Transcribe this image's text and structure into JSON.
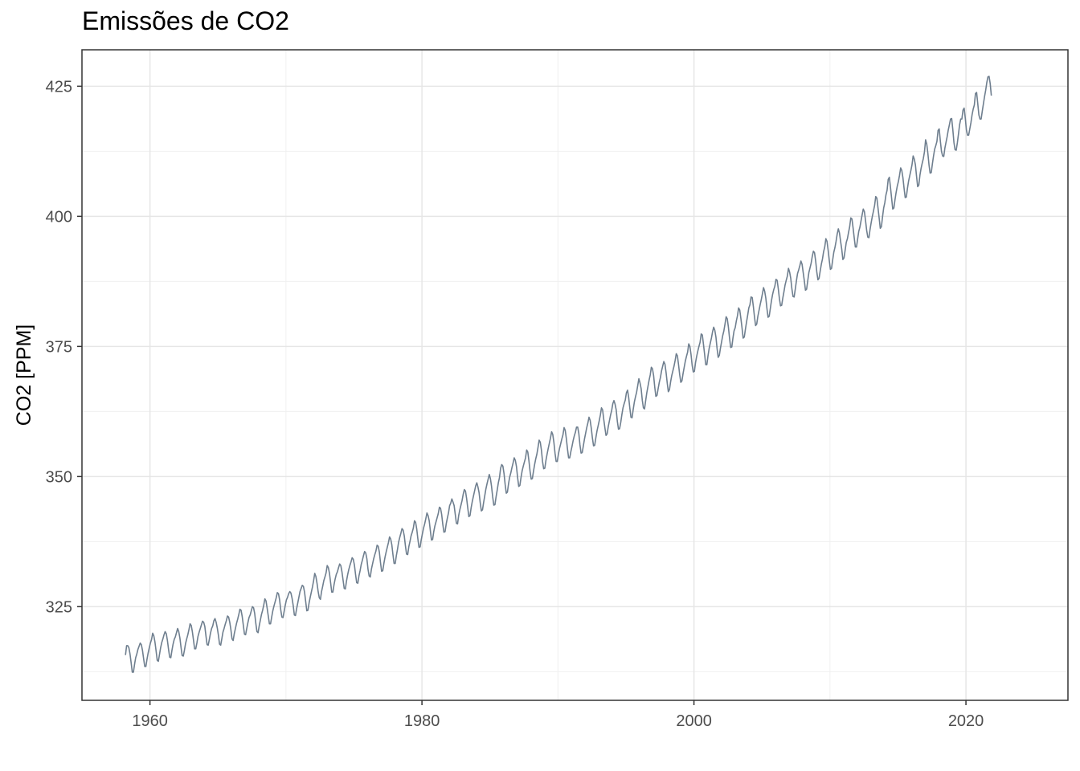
{
  "chart_data": {
    "type": "line",
    "title": "Emissões de CO2",
    "xlabel": "",
    "ylabel": "CO2 [PPM]",
    "xlim": [
      1955,
      2027.5
    ],
    "ylim": [
      307,
      432
    ],
    "x_ticks": [
      1960,
      1980,
      2000,
      2020
    ],
    "y_ticks": [
      325,
      350,
      375,
      400,
      425
    ],
    "grid": true,
    "legend": "none",
    "line_color": "#6f7f8f",
    "sampling": "monthly",
    "series": [
      {
        "x_start": 1958.2,
        "x_step": 0.0833333,
        "values": [
          315.7,
          317.5,
          317.5,
          317.1,
          315.9,
          314.2,
          312.4,
          312.4,
          313.9,
          315.2,
          315.9,
          316.8,
          317.4,
          318.0,
          317.7,
          316.6,
          315.0,
          313.5,
          313.5,
          314.9,
          316.1,
          317.1,
          318.0,
          318.7,
          319.9,
          319.4,
          318.2,
          316.5,
          314.7,
          314.5,
          315.8,
          317.1,
          318.1,
          318.8,
          319.6,
          320.2,
          319.8,
          318.5,
          316.8,
          315.3,
          315.2,
          316.6,
          317.8,
          318.7,
          319.2,
          320.0,
          320.8,
          320.2,
          319.0,
          317.2,
          315.6,
          315.5,
          316.6,
          317.9,
          318.8,
          319.6,
          320.6,
          321.7,
          321.4,
          320.2,
          318.6,
          316.9,
          316.9,
          318.0,
          319.3,
          320.1,
          320.8,
          321.5,
          322.2,
          322.0,
          321.2,
          319.4,
          317.7,
          317.6,
          318.7,
          319.9,
          320.8,
          321.3,
          322.3,
          322.7,
          322.0,
          320.9,
          319.5,
          317.8,
          317.6,
          318.8,
          320.1,
          320.8,
          321.6,
          322.3,
          323.2,
          323.0,
          322.0,
          320.6,
          318.8,
          318.5,
          319.8,
          320.8,
          321.8,
          322.6,
          323.5,
          324.5,
          324.3,
          323.1,
          321.4,
          319.7,
          319.6,
          320.8,
          321.9,
          322.9,
          323.4,
          324.2,
          325.0,
          324.8,
          323.7,
          321.8,
          320.2,
          320.0,
          321.3,
          322.4,
          323.5,
          324.3,
          325.3,
          326.5,
          326.1,
          324.7,
          323.2,
          321.7,
          321.7,
          323.0,
          324.2,
          325.1,
          325.9,
          326.7,
          327.7,
          327.5,
          326.3,
          324.4,
          323.0,
          322.9,
          324.1,
          325.3,
          326.3,
          326.8,
          327.5,
          327.9,
          327.6,
          326.6,
          325.2,
          323.4,
          323.3,
          324.6,
          325.7,
          326.8,
          327.9,
          328.5,
          329.1,
          328.9,
          327.8,
          326.0,
          324.2,
          324.3,
          325.7,
          326.8,
          327.8,
          328.8,
          330.0,
          331.4,
          330.8,
          329.5,
          327.9,
          326.7,
          326.4,
          327.9,
          328.9,
          330.0,
          330.7,
          331.5,
          332.9,
          332.5,
          331.4,
          329.6,
          327.8,
          327.8,
          329.2,
          330.3,
          331.2,
          331.7,
          332.5,
          333.2,
          332.9,
          331.7,
          330.1,
          328.5,
          328.4,
          329.9,
          331.1,
          332.1,
          332.9,
          333.6,
          334.4,
          334.1,
          333.0,
          331.2,
          329.6,
          329.5,
          330.9,
          331.9,
          333.1,
          333.9,
          334.8,
          335.6,
          335.3,
          334.2,
          332.2,
          330.9,
          330.7,
          332.2,
          333.2,
          334.2,
          335.0,
          335.7,
          336.8,
          336.6,
          335.5,
          333.5,
          331.8,
          331.9,
          333.3,
          334.5,
          335.5,
          336.4,
          337.3,
          338.4,
          338.0,
          336.9,
          335.0,
          333.3,
          333.3,
          334.8,
          336.0,
          337.4,
          338.3,
          339.1,
          340.0,
          339.7,
          338.6,
          336.7,
          335.1,
          335.0,
          336.5,
          337.5,
          338.6,
          339.3,
          340.1,
          341.5,
          341.2,
          339.9,
          338.0,
          336.4,
          336.5,
          337.9,
          339.0,
          340.1,
          340.9,
          341.9,
          343.0,
          342.5,
          341.5,
          339.6,
          337.8,
          337.9,
          339.4,
          340.5,
          341.3,
          342.1,
          342.9,
          344.1,
          343.9,
          342.7,
          340.8,
          339.3,
          339.4,
          340.9,
          342.0,
          343.0,
          344.4,
          344.9,
          345.7,
          345.1,
          344.4,
          342.7,
          341.0,
          340.9,
          342.5,
          343.6,
          344.5,
          345.4,
          346.6,
          347.5,
          347.2,
          345.8,
          344.0,
          342.3,
          342.5,
          344.0,
          345.2,
          346.2,
          347.2,
          348.2,
          348.8,
          348.0,
          346.9,
          345.0,
          343.4,
          343.6,
          345.0,
          346.3,
          347.6,
          348.6,
          349.5,
          350.4,
          349.6,
          348.1,
          346.1,
          344.5,
          344.6,
          346.1,
          347.4,
          348.8,
          349.8,
          351.6,
          352.3,
          352.0,
          350.6,
          348.5,
          346.8,
          347.0,
          348.6,
          349.9,
          350.7,
          351.7,
          352.6,
          353.6,
          353.1,
          351.9,
          349.8,
          348.1,
          348.3,
          349.8,
          351.1,
          352.0,
          352.8,
          353.6,
          355.1,
          354.7,
          353.0,
          351.0,
          349.5,
          349.6,
          351.0,
          352.3,
          353.4,
          354.3,
          355.6,
          357.0,
          356.6,
          355.1,
          352.9,
          351.5,
          351.6,
          353.1,
          354.3,
          355.4,
          356.4,
          357.4,
          358.6,
          358.1,
          356.6,
          354.5,
          352.9,
          352.9,
          354.3,
          355.4,
          356.3,
          357.2,
          358.0,
          359.4,
          358.9,
          357.3,
          355.3,
          353.6,
          353.6,
          354.8,
          355.8,
          356.9,
          357.8,
          358.5,
          359.5,
          359.5,
          358.3,
          356.1,
          354.5,
          354.6,
          355.9,
          357.2,
          358.3,
          359.4,
          360.3,
          361.4,
          360.8,
          359.3,
          357.4,
          355.9,
          356.0,
          357.4,
          358.7,
          359.7,
          360.7,
          361.8,
          363.2,
          362.8,
          361.0,
          359.4,
          357.9,
          358.2,
          359.6,
          360.7,
          361.8,
          362.7,
          364.0,
          364.6,
          363.9,
          362.8,
          360.6,
          359.1,
          359.2,
          360.4,
          361.9,
          363.2,
          364.0,
          364.7,
          366.1,
          366.6,
          365.2,
          363.2,
          361.4,
          361.3,
          362.9,
          364.3,
          365.3,
          366.2,
          367.5,
          368.8,
          368.0,
          366.9,
          364.7,
          363.2,
          363.0,
          364.6,
          366.1,
          367.3,
          368.5,
          369.5,
          371.0,
          370.7,
          369.4,
          367.2,
          365.4,
          365.6,
          366.9,
          368.1,
          369.0,
          370.3,
          371.2,
          372.1,
          371.6,
          370.0,
          368.0,
          366.3,
          366.7,
          368.2,
          369.4,
          370.3,
          371.2,
          372.3,
          373.6,
          373.2,
          371.5,
          369.6,
          368.1,
          368.4,
          369.8,
          371.0,
          372.2,
          373.1,
          373.9,
          375.5,
          375.0,
          373.5,
          371.4,
          370.1,
          370.2,
          371.9,
          373.1,
          374.1,
          375.0,
          375.8,
          377.4,
          377.2,
          375.4,
          373.5,
          371.5,
          371.5,
          373.2,
          374.6,
          375.6,
          376.6,
          377.8,
          378.7,
          378.1,
          376.8,
          374.6,
          372.9,
          373.3,
          374.7,
          375.9,
          377.1,
          378.0,
          379.3,
          380.7,
          380.3,
          378.7,
          376.6,
          374.8,
          374.9,
          376.6,
          378.0,
          378.6,
          379.9,
          380.9,
          382.4,
          382.0,
          380.4,
          378.6,
          376.6,
          376.8,
          378.3,
          379.7,
          381.0,
          382.4,
          383.0,
          384.5,
          384.4,
          382.7,
          380.7,
          379.0,
          379.3,
          380.8,
          381.9,
          383.0,
          384.0,
          385.1,
          386.3,
          385.6,
          384.3,
          382.3,
          380.6,
          380.8,
          382.3,
          383.8,
          385.0,
          385.9,
          386.6,
          387.9,
          387.7,
          386.1,
          384.2,
          382.8,
          382.9,
          384.3,
          385.5,
          386.8,
          387.7,
          388.5,
          390.0,
          389.3,
          388.1,
          386.1,
          384.6,
          384.5,
          386.0,
          387.6,
          389.0,
          389.7,
          390.5,
          391.4,
          390.8,
          389.2,
          387.6,
          385.8,
          386.0,
          387.6,
          389.2,
          390.1,
          391.0,
          392.3,
          393.3,
          393.0,
          391.4,
          389.3,
          387.8,
          388.1,
          389.5,
          390.8,
          391.8,
          393.2,
          394.1,
          395.7,
          395.2,
          393.5,
          391.5,
          389.8,
          390.0,
          391.6,
          393.1,
          394.0,
          395.2,
          396.6,
          397.6,
          396.8,
          395.2,
          393.7,
          391.7,
          392.0,
          393.5,
          395.0,
          395.7,
          396.9,
          398.0,
          399.7,
          399.5,
          397.8,
          395.9,
          394.1,
          394.1,
          395.6,
          397.1,
          397.9,
          399.1,
          400.3,
          401.4,
          400.9,
          399.2,
          397.3,
          396.0,
          395.9,
          397.5,
          398.8,
          400.0,
          401.0,
          402.1,
          403.8,
          403.5,
          401.6,
          399.7,
          397.7,
          398.0,
          399.9,
          401.6,
          402.6,
          404.1,
          405.0,
          407.1,
          407.5,
          405.6,
          403.5,
          401.4,
          401.6,
          403.2,
          404.6,
          405.8,
          406.7,
          407.9,
          409.3,
          408.8,
          407.4,
          405.4,
          403.6,
          403.7,
          405.4,
          406.8,
          407.8,
          408.8,
          409.9,
          411.6,
          411.0,
          409.9,
          407.7,
          405.7,
          406.0,
          407.9,
          409.2,
          410.2,
          411.1,
          412.4,
          414.7,
          413.9,
          412.1,
          409.9,
          408.3,
          408.4,
          410.1,
          411.6,
          412.9,
          413.6,
          414.4,
          416.5,
          416.8,
          414.5,
          412.5,
          411.6,
          411.5,
          413.1,
          414.2,
          415.3,
          416.6,
          417.6,
          418.7,
          418.8,
          416.7,
          414.2,
          412.8,
          412.7,
          414.1,
          415.8,
          417.6,
          418.7,
          418.7,
          420.4,
          420.8,
          418.9,
          416.6,
          415.6,
          415.6,
          416.8,
          418.0,
          419.5,
          420.6,
          421.4,
          423.6,
          423.8,
          421.7,
          419.5,
          418.7,
          418.7,
          420.2,
          421.6,
          423.0,
          424.2,
          425.7,
          426.8,
          426.9,
          425.5,
          423.2
        ]
      }
    ]
  }
}
